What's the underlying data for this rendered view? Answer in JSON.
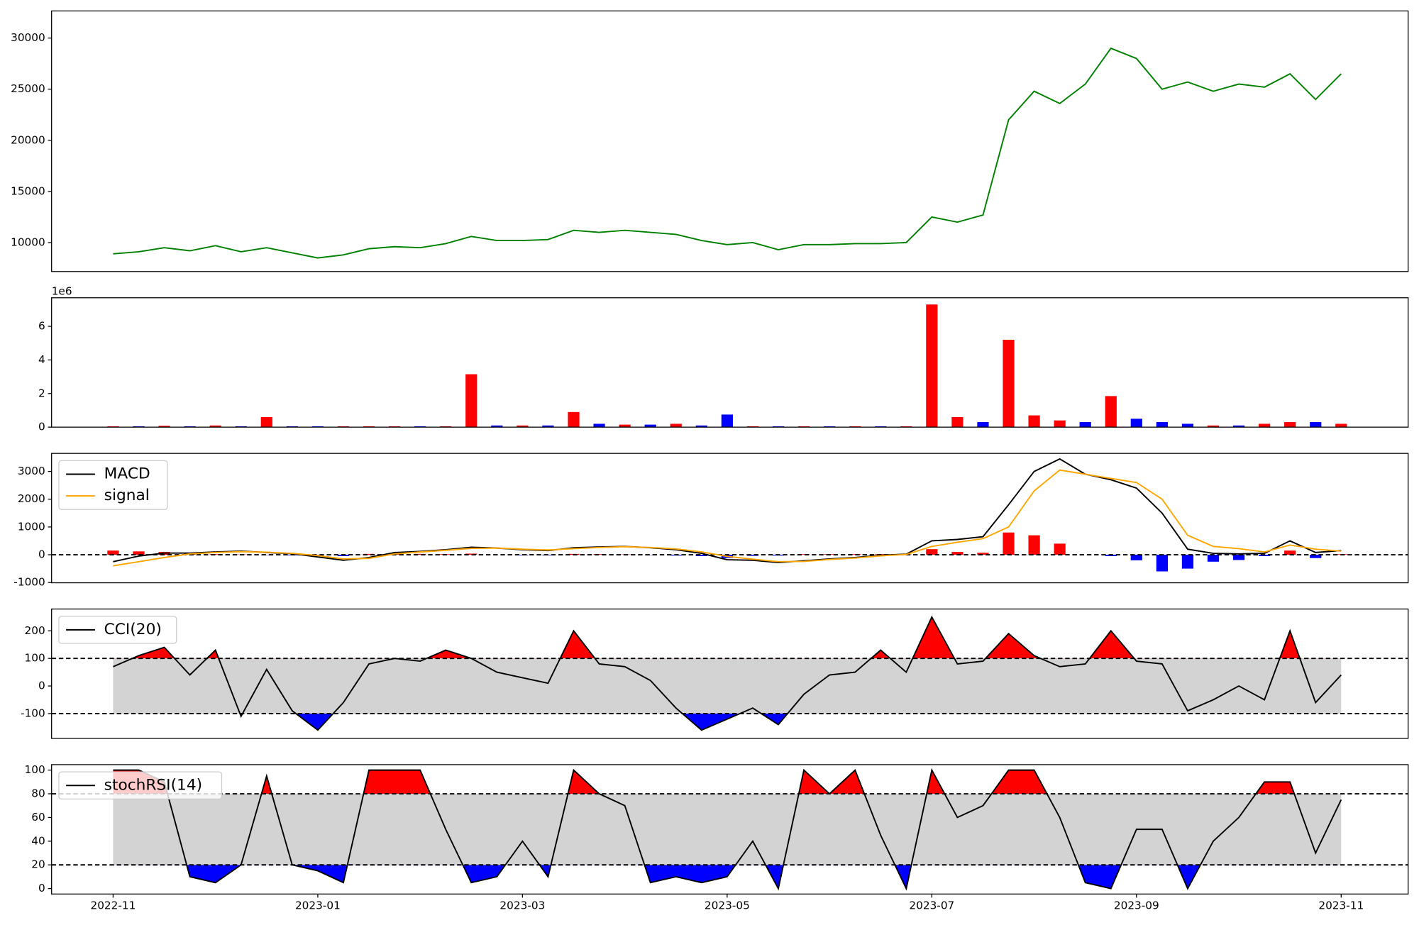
{
  "chart_data": [
    {
      "type": "line",
      "series": [
        {
          "color": "green",
          "values": [
            8900,
            9100,
            9500,
            9200,
            9700,
            9100,
            9500,
            9000,
            8500,
            8800,
            9400,
            9600,
            9500,
            9900,
            10600,
            10200,
            10200,
            10300,
            11200,
            11000,
            11200,
            11000,
            10800,
            10200,
            9800,
            10000,
            9300,
            9800,
            9800,
            9900,
            9900,
            10000,
            12500,
            12000,
            12700,
            22000,
            24800,
            23600,
            25500,
            29000,
            28000,
            25000,
            25700,
            24800,
            25500,
            25200,
            26500,
            24000,
            26500
          ]
        }
      ],
      "ylim": [
        7170,
        32650
      ],
      "yticks": [
        10000,
        15000,
        20000,
        25000,
        30000
      ]
    },
    {
      "type": "bar",
      "offset_label": "1e6",
      "values": [
        0.05,
        0.05,
        0.08,
        0.05,
        0.1,
        0.05,
        0.6,
        0.05,
        0.05,
        0.05,
        0.05,
        0.05,
        0.05,
        0.05,
        3.15,
        0.1,
        0.1,
        0.1,
        0.9,
        0.2,
        0.15,
        0.15,
        0.2,
        0.1,
        0.75,
        0.05,
        0.05,
        0.05,
        0.05,
        0.05,
        0.05,
        0.05,
        7.3,
        0.6,
        0.3,
        5.2,
        0.7,
        0.4,
        0.3,
        1.85,
        0.5,
        0.3,
        0.2,
        0.1,
        0.1,
        0.2,
        0.3,
        0.3,
        0.2
      ],
      "bar_colors": [
        "red",
        "blue",
        "red",
        "blue",
        "red",
        "blue",
        "red",
        "blue",
        "blue",
        "red",
        "red",
        "red",
        "blue",
        "red",
        "red",
        "blue",
        "red",
        "blue",
        "red",
        "blue",
        "red",
        "blue",
        "red",
        "blue",
        "blue",
        "red",
        "blue",
        "red",
        "blue",
        "red",
        "blue",
        "red",
        "red",
        "red",
        "blue",
        "red",
        "red",
        "red",
        "blue",
        "red",
        "blue",
        "blue",
        "blue",
        "red",
        "blue",
        "red",
        "red",
        "blue",
        "red"
      ],
      "ylim": [
        0,
        7.7
      ],
      "yticks": [
        0,
        2,
        4,
        6
      ]
    },
    {
      "type": "macd",
      "series": [
        {
          "name": "MACD",
          "color": "black",
          "values": [
            -250,
            -50,
            60,
            60,
            100,
            130,
            80,
            40,
            -80,
            -200,
            -100,
            80,
            120,
            180,
            270,
            240,
            180,
            150,
            250,
            280,
            300,
            250,
            180,
            50,
            -180,
            -200,
            -280,
            -220,
            -150,
            -100,
            -20,
            20,
            500,
            550,
            650,
            1800,
            3000,
            3450,
            2900,
            2700,
            2400,
            1500,
            200,
            50,
            30,
            50,
            500,
            80,
            150
          ]
        },
        {
          "name": "signal",
          "color": "orange",
          "values": [
            -400,
            -250,
            -100,
            30,
            80,
            110,
            90,
            50,
            -30,
            -150,
            -130,
            30,
            100,
            160,
            230,
            240,
            200,
            170,
            220,
            260,
            290,
            260,
            210,
            100,
            -60,
            -160,
            -250,
            -240,
            -170,
            -120,
            -40,
            10,
            300,
            450,
            580,
            1000,
            2300,
            3050,
            2900,
            2750,
            2600,
            2000,
            700,
            300,
            220,
            100,
            350,
            200,
            130
          ]
        }
      ],
      "histogram": {
        "values": [
          150,
          120,
          100,
          60,
          20,
          10,
          -10,
          -20,
          -50,
          -50,
          30,
          50,
          30,
          20,
          40,
          0,
          -20,
          -20,
          30,
          20,
          10,
          -10,
          -30,
          -50,
          -120,
          -40,
          -30,
          20,
          20,
          20,
          20,
          10,
          200,
          100,
          70,
          800,
          700,
          400,
          0,
          -50,
          -200,
          -600,
          -500,
          -250,
          -190,
          -50,
          150,
          -120,
          20
        ],
        "pos_color": "red",
        "neg_color": "blue"
      },
      "hlines": [
        0
      ],
      "legend": "upper left",
      "ylim": [
        -1010,
        3650
      ],
      "yticks": [
        -1000,
        0,
        1000,
        2000,
        3000
      ]
    },
    {
      "type": "oscillator",
      "series": [
        {
          "name": "CCI(20)",
          "color": "black",
          "values": [
            70,
            110,
            140,
            40,
            130,
            -110,
            60,
            -90,
            -160,
            -60,
            80,
            100,
            90,
            130,
            100,
            50,
            30,
            10,
            200,
            80,
            70,
            20,
            -80,
            -160,
            -120,
            -80,
            -140,
            -30,
            40,
            50,
            130,
            50,
            250,
            80,
            90,
            190,
            110,
            70,
            80,
            200,
            90,
            80,
            -90,
            -50,
            0,
            -50,
            200,
            -60,
            40
          ]
        }
      ],
      "bands": [
        -100,
        100
      ],
      "band_color": "lightgray",
      "over_color": "red",
      "under_color": "blue",
      "legend": "upper left",
      "ylim": [
        -190,
        279
      ],
      "yticks": [
        -100,
        0,
        100,
        200
      ]
    },
    {
      "type": "oscillator",
      "series": [
        {
          "name": "stochRSI(14)",
          "color": "black",
          "values": [
            100,
            100,
            90,
            10,
            5,
            20,
            95,
            20,
            15,
            5,
            100,
            100,
            100,
            50,
            5,
            10,
            40,
            10,
            100,
            80,
            70,
            5,
            10,
            5,
            10,
            40,
            0,
            100,
            80,
            100,
            45,
            0,
            100,
            60,
            70,
            100,
            100,
            60,
            5,
            0,
            50,
            50,
            0,
            40,
            60,
            90,
            90,
            30,
            75
          ]
        }
      ],
      "bands": [
        20,
        80
      ],
      "band_color": "lightgray",
      "over_color": "red",
      "under_color": "blue",
      "legend": "upper left",
      "ylim": [
        -4.6,
        104.6
      ],
      "yticks": [
        0,
        20,
        40,
        60,
        80,
        100
      ],
      "categories": [
        "2022-11",
        null,
        null,
        null,
        null,
        null,
        null,
        null,
        "2023-01",
        null,
        null,
        null,
        null,
        null,
        null,
        null,
        "2023-03",
        null,
        null,
        null,
        null,
        null,
        null,
        null,
        "2023-05",
        null,
        null,
        null,
        null,
        null,
        null,
        null,
        "2023-07",
        null,
        null,
        null,
        null,
        null,
        null,
        null,
        "2023-09",
        null,
        null,
        null,
        null,
        null,
        null,
        null,
        "2023-11"
      ]
    }
  ]
}
